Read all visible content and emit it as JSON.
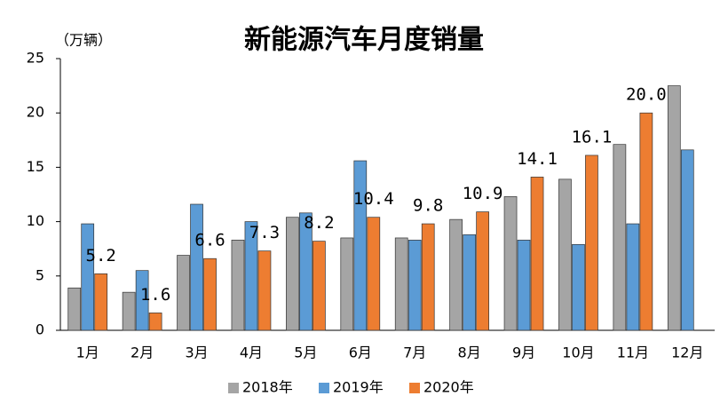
{
  "chart_data": {
    "type": "bar",
    "title": "新能源汽车月度销量",
    "y_label": "（万辆）",
    "categories": [
      "1月",
      "2月",
      "3月",
      "4月",
      "5月",
      "6月",
      "7月",
      "8月",
      "9月",
      "10月",
      "11月",
      "12月"
    ],
    "series": [
      {
        "name": "2018年",
        "color": "#a5a5a5",
        "values": [
          3.9,
          3.5,
          6.9,
          8.3,
          10.4,
          8.5,
          8.5,
          10.2,
          12.3,
          13.9,
          17.1,
          22.5
        ]
      },
      {
        "name": "2019年",
        "color": "#5b9bd5",
        "values": [
          9.8,
          5.5,
          11.6,
          10.0,
          10.8,
          15.6,
          8.3,
          8.8,
          8.3,
          7.9,
          9.8,
          16.6
        ]
      },
      {
        "name": "2020年",
        "color": "#ed7d31",
        "values": [
          5.2,
          1.6,
          6.6,
          7.3,
          8.2,
          10.4,
          9.8,
          10.9,
          14.1,
          16.1,
          20.0,
          null
        ],
        "value_labels": [
          "5.2",
          "1.6",
          "6.6",
          "7.3",
          "8.2",
          "10.4",
          "9.8",
          "10.9",
          "14.1",
          "16.1",
          "20.0",
          null
        ]
      }
    ],
    "ylim": [
      0,
      25
    ],
    "yticks": [
      0,
      5,
      10,
      15,
      20,
      25
    ],
    "legend": "bottom"
  }
}
